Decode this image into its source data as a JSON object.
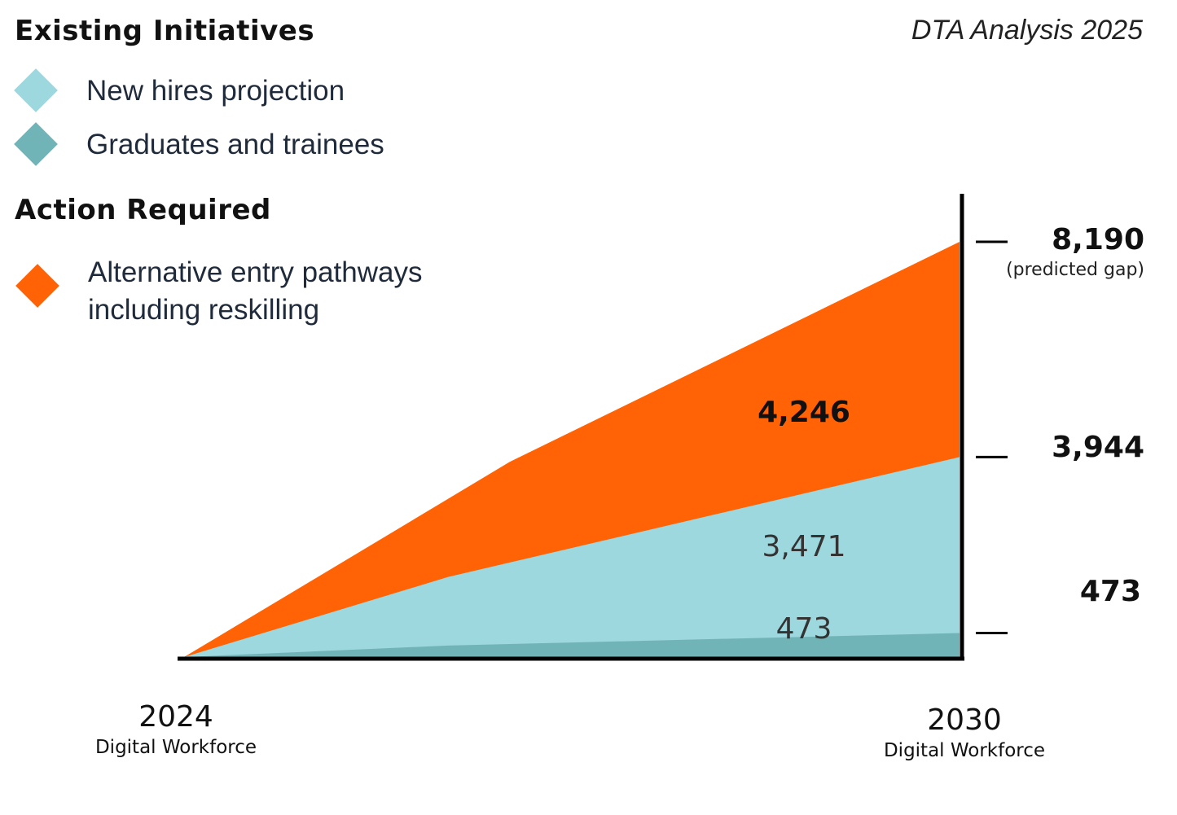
{
  "header": {
    "existing_title": "Existing Initiatives",
    "source": "DTA Analysis 2025",
    "action_title": "Action Required"
  },
  "legend": [
    {
      "label": "New hires projection",
      "color": "#9dd8de",
      "icon": "diamond-icon"
    },
    {
      "label": "Graduates and trainees",
      "color": "#71b4b8",
      "icon": "diamond-icon"
    },
    {
      "label_lines": [
        "Alternative entry pathways",
        "including reskilling"
      ],
      "color": "#ff6305",
      "icon": "diamond-icon"
    }
  ],
  "chart_data": {
    "type": "area",
    "stacked": true,
    "x": [
      "2024",
      "2030"
    ],
    "x_labels": [
      {
        "year": "2024",
        "sub": "Digital Workforce"
      },
      {
        "year": "2030",
        "sub": "Digital Workforce"
      }
    ],
    "series": [
      {
        "name": "Graduates and trainees",
        "color": "#71b4b8",
        "values": [
          0,
          473
        ],
        "label": "473"
      },
      {
        "name": "New hires projection",
        "color": "#9dd8de",
        "values": [
          0,
          3471
        ],
        "label": "3,471"
      },
      {
        "name": "Alternative entry pathways including reskilling",
        "color": "#ff6305",
        "values": [
          0,
          4246
        ],
        "label": "4,246"
      }
    ],
    "right_markers": [
      {
        "value": 8190,
        "label": "8,190",
        "note": "(predicted gap)"
      },
      {
        "value": 3944,
        "label": "3,944"
      },
      {
        "value": 473,
        "label": "473"
      }
    ],
    "ylim": [
      0,
      8190
    ]
  }
}
